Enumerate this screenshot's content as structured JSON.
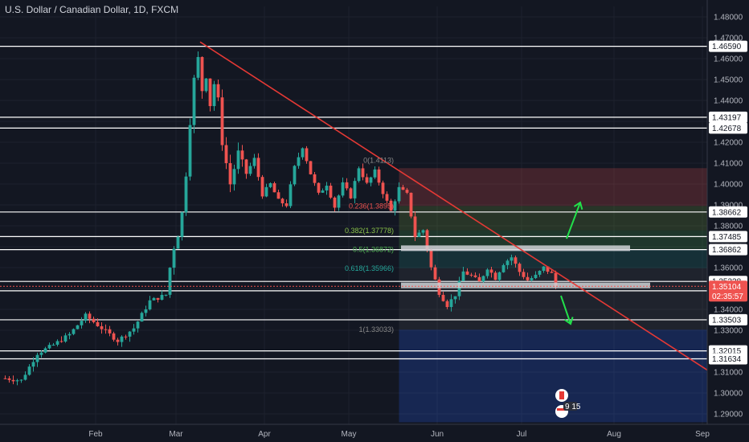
{
  "header": {
    "title": "U.S. Dollar / Canadian Dollar, 1D, FXCM"
  },
  "colors": {
    "background": "#131722",
    "up": "#26a69a",
    "down": "#ef5350",
    "level_line": "#ffffff",
    "trendline": "#e53935",
    "arrow": "#22e04a",
    "grid": "#1e222d"
  },
  "price_axis": {
    "min": 1.285,
    "max": 1.485,
    "ticks": [
      "1.48000",
      "1.47000",
      "1.46000",
      "1.45000",
      "1.44000",
      "1.43000",
      "1.42000",
      "1.41000",
      "1.40000",
      "1.39000",
      "1.38000",
      "1.37000",
      "1.36000",
      "1.35000",
      "1.34000",
      "1.33000",
      "1.32000",
      "1.31000",
      "1.30000",
      "1.29000"
    ]
  },
  "time_axis": {
    "labels": [
      {
        "text": "Feb",
        "idx": 23
      },
      {
        "text": "Mar",
        "idx": 43
      },
      {
        "text": "Apr",
        "idx": 65
      },
      {
        "text": "May",
        "idx": 86
      },
      {
        "text": "Jun",
        "idx": 108
      },
      {
        "text": "Jul",
        "idx": 129
      },
      {
        "text": "Aug",
        "idx": 152
      },
      {
        "text": "Sep",
        "idx": 174
      }
    ]
  },
  "chart_data": {
    "type": "candlestick",
    "title": "U.S. Dollar / Canadian Dollar, 1D, FXCM",
    "y_range": [
      1.285,
      1.485
    ],
    "bar_count_visible": 176,
    "keypoints": [
      {
        "i": 0,
        "p": 1.307
      },
      {
        "i": 4,
        "p": 1.306
      },
      {
        "i": 8,
        "p": 1.319
      },
      {
        "i": 12,
        "p": 1.323
      },
      {
        "i": 16,
        "p": 1.328
      },
      {
        "i": 20,
        "p": 1.337
      },
      {
        "i": 24,
        "p": 1.331
      },
      {
        "i": 28,
        "p": 1.325
      },
      {
        "i": 32,
        "p": 1.331
      },
      {
        "i": 36,
        "p": 1.344
      },
      {
        "i": 40,
        "p": 1.347
      },
      {
        "i": 41,
        "p": 1.36
      },
      {
        "i": 42,
        "p": 1.37
      },
      {
        "i": 43,
        "p": 1.376
      },
      {
        "i": 44,
        "p": 1.386
      },
      {
        "i": 45,
        "p": 1.405
      },
      {
        "i": 46,
        "p": 1.43
      },
      {
        "i": 47,
        "p": 1.45
      },
      {
        "i": 48,
        "p": 1.46
      },
      {
        "i": 49,
        "p": 1.445
      },
      {
        "i": 50,
        "p": 1.452
      },
      {
        "i": 51,
        "p": 1.438
      },
      {
        "i": 52,
        "p": 1.448
      },
      {
        "i": 53,
        "p": 1.44
      },
      {
        "i": 54,
        "p": 1.42
      },
      {
        "i": 56,
        "p": 1.4
      },
      {
        "i": 58,
        "p": 1.415
      },
      {
        "i": 60,
        "p": 1.405
      },
      {
        "i": 62,
        "p": 1.412
      },
      {
        "i": 64,
        "p": 1.395
      },
      {
        "i": 66,
        "p": 1.4
      },
      {
        "i": 68,
        "p": 1.392
      },
      {
        "i": 70,
        "p": 1.39
      },
      {
        "i": 72,
        "p": 1.408
      },
      {
        "i": 74,
        "p": 1.418
      },
      {
        "i": 76,
        "p": 1.405
      },
      {
        "i": 78,
        "p": 1.395
      },
      {
        "i": 80,
        "p": 1.4
      },
      {
        "i": 82,
        "p": 1.389
      },
      {
        "i": 84,
        "p": 1.4
      },
      {
        "i": 86,
        "p": 1.394
      },
      {
        "i": 88,
        "p": 1.408
      },
      {
        "i": 90,
        "p": 1.4
      },
      {
        "i": 92,
        "p": 1.406
      },
      {
        "i": 94,
        "p": 1.396
      },
      {
        "i": 96,
        "p": 1.387
      },
      {
        "i": 98,
        "p": 1.398
      },
      {
        "i": 100,
        "p": 1.395
      },
      {
        "i": 102,
        "p": 1.375
      },
      {
        "i": 104,
        "p": 1.378
      },
      {
        "i": 106,
        "p": 1.36
      },
      {
        "i": 108,
        "p": 1.348
      },
      {
        "i": 110,
        "p": 1.342
      },
      {
        "i": 112,
        "p": 1.347
      },
      {
        "i": 114,
        "p": 1.358
      },
      {
        "i": 116,
        "p": 1.356
      },
      {
        "i": 118,
        "p": 1.353
      },
      {
        "i": 120,
        "p": 1.36
      },
      {
        "i": 122,
        "p": 1.355
      },
      {
        "i": 124,
        "p": 1.362
      },
      {
        "i": 126,
        "p": 1.365
      },
      {
        "i": 128,
        "p": 1.358
      },
      {
        "i": 130,
        "p": 1.354
      },
      {
        "i": 132,
        "p": 1.356
      },
      {
        "i": 134,
        "p": 1.36
      },
      {
        "i": 136,
        "p": 1.357
      },
      {
        "i": 137,
        "p": 1.351
      }
    ],
    "horizontal_levels": [
      {
        "price": 1.4659,
        "label": "1.46590"
      },
      {
        "price": 1.43197,
        "label": "1.43197"
      },
      {
        "price": 1.42678,
        "label": "1.42678"
      },
      {
        "price": 1.38662,
        "label": "1.38662"
      },
      {
        "price": 1.37485,
        "label": "1.37485"
      },
      {
        "price": 1.36862,
        "label": "1.36862"
      },
      {
        "price": 1.35338,
        "label": "1.35338"
      },
      {
        "price": 1.34888,
        "label": "1.34888"
      },
      {
        "price": 1.33503,
        "label": "1.33503"
      },
      {
        "price": 1.32015,
        "label": "1.32015"
      },
      {
        "price": 1.31634,
        "label": "1.31634"
      }
    ],
    "current_price": {
      "price": 1.35104,
      "label": "1.35104",
      "countdown": "02:35:57"
    },
    "fibonacci": [
      {
        "price": 1.4113,
        "label": "0(1.4113)",
        "color": "#888888"
      },
      {
        "price": 1.3895,
        "label": "0.236(1.3895)",
        "color": "#ef5350"
      },
      {
        "price": 1.37778,
        "label": "0.382(1.37778)",
        "color": "#8bc34a"
      },
      {
        "price": 1.36872,
        "label": "0.5(1.36872)",
        "color": "#4caf50"
      },
      {
        "price": 1.35966,
        "label": "0.618(1.35966)",
        "color": "#26a69a"
      },
      {
        "price": 1.33033,
        "label": "1(1.33033)",
        "color": "#888888"
      }
    ],
    "events": {
      "earnings_badge": "9 15"
    }
  }
}
